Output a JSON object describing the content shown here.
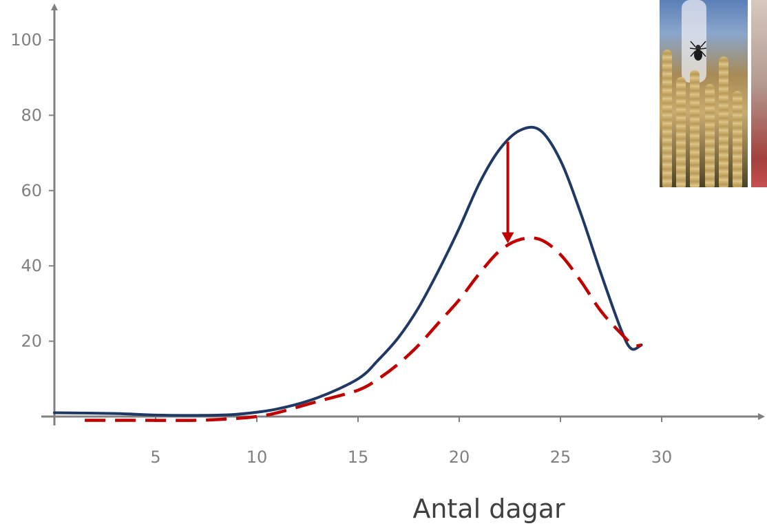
{
  "chart_data": {
    "type": "line",
    "title": "",
    "xlabel": "Antal dagar",
    "ylabel": "",
    "xlim": [
      0,
      34
    ],
    "ylim": [
      0,
      100
    ],
    "x_ticks": [
      5,
      10,
      15,
      20,
      25,
      30
    ],
    "y_ticks": [
      20,
      40,
      60,
      80,
      100
    ],
    "grid": false,
    "series": [
      {
        "style": "solid",
        "color": "#1f3864",
        "x": [
          0,
          3,
          5,
          7,
          9,
          11,
          13,
          15,
          16,
          17,
          18,
          19,
          20,
          21,
          22,
          23,
          24,
          25,
          26,
          27,
          28,
          28.5,
          29
        ],
        "y": [
          1,
          0.8,
          0.4,
          0.3,
          0.6,
          2,
          5,
          10,
          15,
          21,
          29,
          39,
          50,
          62,
          71,
          76,
          76,
          68,
          54,
          38,
          23,
          18,
          19
        ]
      },
      {
        "style": "dashed",
        "color": "#c00000",
        "x": [
          1.5,
          4,
          7,
          9,
          10,
          11,
          13,
          15,
          16,
          17,
          18,
          19,
          20,
          21,
          22,
          23,
          24,
          25,
          26,
          27,
          28,
          28.6,
          29
        ],
        "y": [
          -1,
          -1,
          -1,
          -0.5,
          0,
          1,
          4,
          7,
          10,
          14,
          19,
          25,
          31,
          38,
          44,
          47,
          47,
          43,
          36,
          28,
          22,
          19,
          19
        ]
      }
    ],
    "annotations": [
      {
        "type": "arrow",
        "color": "#c00000",
        "x": 22.4,
        "y_from": 73,
        "y_to": 46
      }
    ]
  },
  "photos": [
    {
      "icon": "wheat-with-spider-photo"
    },
    {
      "icon": "second-photo-cropped"
    }
  ]
}
